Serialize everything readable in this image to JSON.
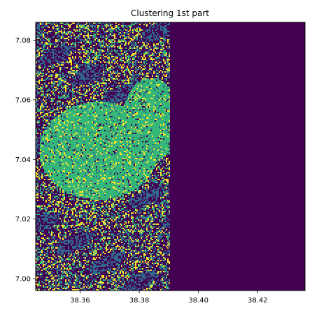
{
  "chart_data": {
    "type": "heatmap",
    "title": "Clustering 1st part",
    "xlabel": "",
    "ylabel": "",
    "xlim": [
      38.345,
      38.436
    ],
    "ylim": [
      6.996,
      7.086
    ],
    "x_ticks": [
      38.36,
      38.38,
      38.4,
      38.42
    ],
    "x_tick_labels": [
      "38.36",
      "38.38",
      "38.40",
      "38.42"
    ],
    "y_ticks": [
      7.0,
      7.02,
      7.04,
      7.06,
      7.08
    ],
    "y_tick_labels": [
      "7.00",
      "7.02",
      "7.04",
      "7.06",
      "7.08"
    ],
    "colormap": "viridis",
    "legend": "none",
    "grid": false,
    "cluster_colors": [
      "#440154",
      "#31688e",
      "#35b779",
      "#fde725"
    ],
    "data_extent_x": [
      38.345,
      38.39
    ],
    "background_color": "#440154"
  }
}
